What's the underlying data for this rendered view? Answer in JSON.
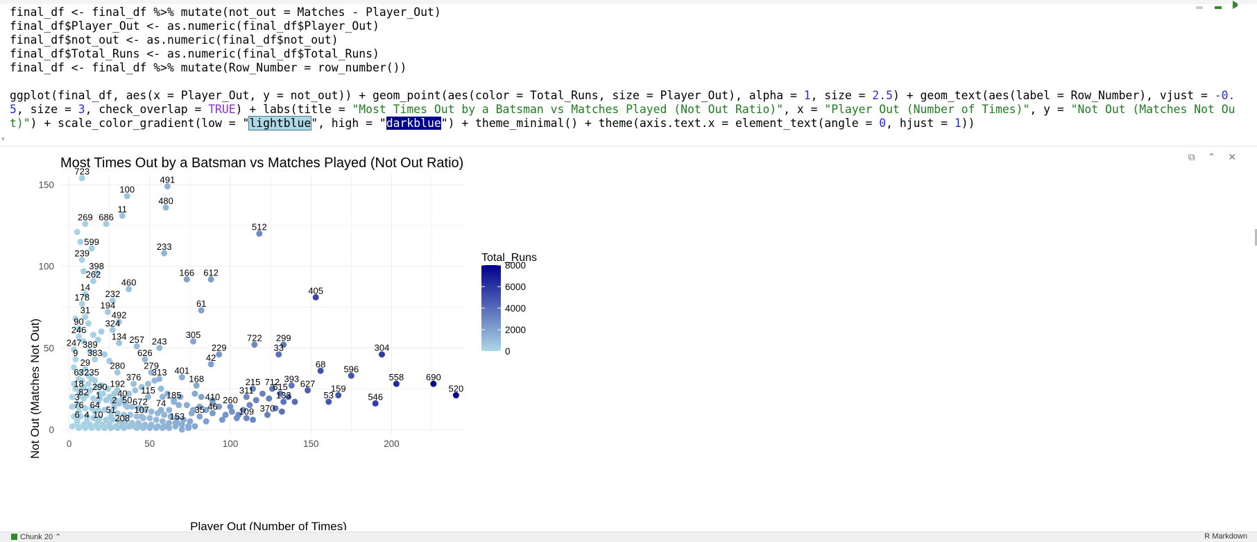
{
  "editor": {
    "code_lines": [
      "final_df <- final_df %>% mutate(not_out = Matches - Player_Out)",
      "final_df$Player_Out <- as.numeric(final_df$Player_Out)",
      "final_df$not_out <- as.numeric(final_df$not_out)",
      "final_df$Total_Runs <- as.numeric(final_df$Total_Runs)",
      "final_df <- final_df %>% mutate(Row_Number = row_number())"
    ],
    "ggplot_parts": {
      "p1": "ggplot(final_df, aes(x = Player_Out, y = not_out)) + geom_point(aes(color = Total_Runs, size = Player_Out), alpha = ",
      "alpha": "1",
      "p2": ", size = ",
      "size1": "2.5",
      "p3": ") + geom_text(aes(label = Row_Number), vjust = ",
      "vjust": "-0.5",
      "p4": ", size = ",
      "size2": "3",
      "p5": ", check_overlap = ",
      "overlap": "TRUE",
      "p6": ") + labs(title = ",
      "title_str": "\"Most Times Out by a Batsman vs Matches Played (Not Out Ratio)\"",
      "p7": ", x = ",
      "x_str": "\"Player Out (Number of Times)\"",
      "p8": ", y = ",
      "y_str": "\"Not Out (Matches Not Out)\"",
      "p9": ") + scale_color_gradient(low = \"",
      "low": "lightblue",
      "p10": "\", high = \"",
      "high": "darkblue",
      "p11": "\") + theme_minimal() + theme(axis.text.x = element_text(angle = ",
      "angle": "0",
      "p12": ", hjust = ",
      "hjust": "1",
      "p13": "))"
    }
  },
  "status": {
    "chunk": "Chunk 20",
    "doc_type": "R Markdown"
  },
  "colors": {
    "low": "#add8e6",
    "high": "#00008b",
    "grid": "#ebebeb"
  },
  "chart_data": {
    "type": "scatter",
    "title": "Most Times Out by a Batsman vs Matches Played (Not Out Ratio)",
    "xlabel": "Player Out (Number of Times)",
    "ylabel": "Not Out (Matches Not Out)",
    "xlim": [
      -5,
      245
    ],
    "ylim": [
      -3,
      156
    ],
    "xticks": [
      0,
      50,
      100,
      150,
      200
    ],
    "yticks": [
      0,
      50,
      100,
      150
    ],
    "legend": {
      "title": "Total_Runs",
      "ticks": [
        0,
        2000,
        4000,
        6000,
        8000
      ],
      "placement": "right"
    },
    "labeled_points": [
      {
        "label": "723",
        "x": 8,
        "y": 154,
        "runs": 300
      },
      {
        "label": "491",
        "x": 61,
        "y": 149,
        "runs": 1400
      },
      {
        "label": "100",
        "x": 36,
        "y": 143,
        "runs": 700
      },
      {
        "label": "480",
        "x": 60,
        "y": 136,
        "runs": 1200
      },
      {
        "label": "11",
        "x": 33,
        "y": 131,
        "runs": 800
      },
      {
        "label": "269",
        "x": 10,
        "y": 126,
        "runs": 300
      },
      {
        "label": "686",
        "x": 23,
        "y": 126,
        "runs": 500
      },
      {
        "label": "512",
        "x": 118,
        "y": 120,
        "runs": 2900
      },
      {
        "label": "599",
        "x": 14,
        "y": 111,
        "runs": 400
      },
      {
        "label": "233",
        "x": 59,
        "y": 108,
        "runs": 1300
      },
      {
        "label": "239",
        "x": 8,
        "y": 104,
        "runs": 300
      },
      {
        "label": "398",
        "x": 17,
        "y": 96,
        "runs": 400
      },
      {
        "label": "166",
        "x": 73,
        "y": 92,
        "runs": 2000
      },
      {
        "label": "612",
        "x": 88,
        "y": 92,
        "runs": 2200
      },
      {
        "label": "262",
        "x": 15,
        "y": 91,
        "runs": 350
      },
      {
        "label": "460",
        "x": 37,
        "y": 86,
        "runs": 800
      },
      {
        "label": "405",
        "x": 153,
        "y": 81,
        "runs": 5400
      },
      {
        "label": "14",
        "x": 10,
        "y": 83,
        "runs": 250
      },
      {
        "label": "232",
        "x": 27,
        "y": 79,
        "runs": 450
      },
      {
        "label": "178",
        "x": 8,
        "y": 77,
        "runs": 200
      },
      {
        "label": "194",
        "x": 24,
        "y": 72,
        "runs": 450
      },
      {
        "label": "61",
        "x": 82,
        "y": 73,
        "runs": 2000
      },
      {
        "label": "31",
        "x": 10,
        "y": 69,
        "runs": 200
      },
      {
        "label": "492",
        "x": 31,
        "y": 66,
        "runs": 600
      },
      {
        "label": "90",
        "x": 6,
        "y": 62,
        "runs": 150
      },
      {
        "label": "324",
        "x": 27,
        "y": 61,
        "runs": 500
      },
      {
        "label": "246",
        "x": 6,
        "y": 57,
        "runs": 150
      },
      {
        "label": "134",
        "x": 31,
        "y": 53,
        "runs": 700
      },
      {
        "label": "305",
        "x": 77,
        "y": 54,
        "runs": 1900
      },
      {
        "label": "722",
        "x": 115,
        "y": 52,
        "runs": 3000
      },
      {
        "label": "299",
        "x": 133,
        "y": 52,
        "runs": 3500
      },
      {
        "label": "257",
        "x": 42,
        "y": 51,
        "runs": 1000
      },
      {
        "label": "243",
        "x": 56,
        "y": 50,
        "runs": 1200
      },
      {
        "label": "247",
        "x": 3,
        "y": 49,
        "runs": 100
      },
      {
        "label": "389",
        "x": 13,
        "y": 48,
        "runs": 300
      },
      {
        "label": "33",
        "x": 130,
        "y": 46,
        "runs": 3800
      },
      {
        "label": "229",
        "x": 93,
        "y": 46,
        "runs": 2400
      },
      {
        "label": "304",
        "x": 194,
        "y": 46,
        "runs": 5800
      },
      {
        "label": "626",
        "x": 47,
        "y": 43,
        "runs": 1100
      },
      {
        "label": "9",
        "x": 4,
        "y": 43,
        "runs": 100
      },
      {
        "label": "383",
        "x": 16,
        "y": 43,
        "runs": 300
      },
      {
        "label": "42",
        "x": 88,
        "y": 40,
        "runs": 2100
      },
      {
        "label": "29",
        "x": 10,
        "y": 37,
        "runs": 200
      },
      {
        "label": "68",
        "x": 156,
        "y": 36,
        "runs": 5000
      },
      {
        "label": "280",
        "x": 30,
        "y": 35,
        "runs": 600
      },
      {
        "label": "279",
        "x": 51,
        "y": 35,
        "runs": 1200
      },
      {
        "label": "596",
        "x": 175,
        "y": 33,
        "runs": 4900
      },
      {
        "label": "63",
        "x": 6,
        "y": 31,
        "runs": 100
      },
      {
        "label": "235",
        "x": 14,
        "y": 31,
        "runs": 300
      },
      {
        "label": "313",
        "x": 56,
        "y": 31,
        "runs": 1300
      },
      {
        "label": "401",
        "x": 70,
        "y": 32,
        "runs": 1600
      },
      {
        "label": "558",
        "x": 203,
        "y": 28,
        "runs": 6500
      },
      {
        "label": "690",
        "x": 226,
        "y": 28,
        "runs": 7800
      },
      {
        "label": "376",
        "x": 40,
        "y": 28,
        "runs": 900
      },
      {
        "label": "168",
        "x": 79,
        "y": 27,
        "runs": 1800
      },
      {
        "label": "393",
        "x": 138,
        "y": 27,
        "runs": 3700
      },
      {
        "label": "215",
        "x": 114,
        "y": 25,
        "runs": 3100
      },
      {
        "label": "712",
        "x": 126,
        "y": 25,
        "runs": 3400
      },
      {
        "label": "627",
        "x": 148,
        "y": 24,
        "runs": 4400
      },
      {
        "label": "18",
        "x": 6,
        "y": 24,
        "runs": 100
      },
      {
        "label": "192",
        "x": 30,
        "y": 24,
        "runs": 600
      },
      {
        "label": "290",
        "x": 19,
        "y": 22,
        "runs": 300
      },
      {
        "label": "615",
        "x": 131,
        "y": 22,
        "runs": 3700
      },
      {
        "label": "520",
        "x": 240,
        "y": 21,
        "runs": 8000
      },
      {
        "label": "311",
        "x": 110,
        "y": 20,
        "runs": 3000
      },
      {
        "label": "159",
        "x": 167,
        "y": 21,
        "runs": 4900
      },
      {
        "label": "115",
        "x": 49,
        "y": 20,
        "runs": 1100
      },
      {
        "label": "82",
        "x": 9,
        "y": 19,
        "runs": 150
      },
      {
        "label": "40",
        "x": 33,
        "y": 18,
        "runs": 700
      },
      {
        "label": "1",
        "x": 18,
        "y": 17,
        "runs": 300
      },
      {
        "label": "185",
        "x": 65,
        "y": 17,
        "runs": 1500
      },
      {
        "label": "53",
        "x": 161,
        "y": 17,
        "runs": 4800
      },
      {
        "label": "133",
        "x": 133,
        "y": 17,
        "runs": 3700
      },
      {
        "label": "410",
        "x": 89,
        "y": 16,
        "runs": 2200
      },
      {
        "label": "546",
        "x": 190,
        "y": 16,
        "runs": 5700
      },
      {
        "label": "3",
        "x": 5,
        "y": 16,
        "runs": 100
      },
      {
        "label": "50",
        "x": 36,
        "y": 14,
        "runs": 800
      },
      {
        "label": "2",
        "x": 28,
        "y": 14,
        "runs": 600
      },
      {
        "label": "672",
        "x": 44,
        "y": 13,
        "runs": 1000
      },
      {
        "label": "260",
        "x": 100,
        "y": 14,
        "runs": 2700
      },
      {
        "label": "74",
        "x": 57,
        "y": 12,
        "runs": 1400
      },
      {
        "label": "76",
        "x": 6,
        "y": 11,
        "runs": 100
      },
      {
        "label": "64",
        "x": 16,
        "y": 11,
        "runs": 300
      },
      {
        "label": "46",
        "x": 89,
        "y": 10,
        "runs": 2300
      },
      {
        "label": "370",
        "x": 123,
        "y": 9,
        "runs": 3300
      },
      {
        "label": "51",
        "x": 26,
        "y": 8,
        "runs": 500
      },
      {
        "label": "107",
        "x": 45,
        "y": 8,
        "runs": 1000
      },
      {
        "label": "35",
        "x": 81,
        "y": 8,
        "runs": 2000
      },
      {
        "label": "109",
        "x": 110,
        "y": 7,
        "runs": 3000
      },
      {
        "label": "6",
        "x": 5,
        "y": 5,
        "runs": 100
      },
      {
        "label": "4",
        "x": 11,
        "y": 5,
        "runs": 200
      },
      {
        "label": "10",
        "x": 18,
        "y": 5,
        "runs": 300
      },
      {
        "label": "153",
        "x": 67,
        "y": 4,
        "runs": 1600
      },
      {
        "label": "208",
        "x": 33,
        "y": 3,
        "runs": 700
      }
    ],
    "unlabeled_points": [
      [
        5,
        121,
        200
      ],
      [
        7,
        115,
        250
      ],
      [
        9,
        97,
        300
      ],
      [
        4,
        68,
        150
      ],
      [
        12,
        65,
        250
      ],
      [
        15,
        58,
        300
      ],
      [
        18,
        55,
        350
      ],
      [
        20,
        60,
        400
      ],
      [
        9,
        54,
        200
      ],
      [
        22,
        46,
        450
      ],
      [
        25,
        42,
        500
      ],
      [
        3,
        38,
        100
      ],
      [
        7,
        35,
        150
      ],
      [
        12,
        33,
        250
      ],
      [
        16,
        30,
        300
      ],
      [
        20,
        27,
        400
      ],
      [
        24,
        25,
        450
      ],
      [
        28,
        22,
        550
      ],
      [
        3,
        28,
        100
      ],
      [
        9,
        26,
        200
      ],
      [
        13,
        24,
        250
      ],
      [
        2,
        20,
        100
      ],
      [
        7,
        21,
        150
      ],
      [
        11,
        21,
        200
      ],
      [
        15,
        19,
        300
      ],
      [
        19,
        19,
        350
      ],
      [
        23,
        18,
        450
      ],
      [
        27,
        17,
        550
      ],
      [
        31,
        16,
        650
      ],
      [
        35,
        15,
        750
      ],
      [
        39,
        14,
        850
      ],
      [
        43,
        13,
        950
      ],
      [
        47,
        12,
        1050
      ],
      [
        51,
        11,
        1150
      ],
      [
        55,
        10,
        1250
      ],
      [
        59,
        9,
        1350
      ],
      [
        63,
        8,
        1450
      ],
      [
        67,
        7,
        1550
      ],
      [
        71,
        6,
        1650
      ],
      [
        75,
        5,
        1750
      ],
      [
        2,
        14,
        100
      ],
      [
        6,
        14,
        150
      ],
      [
        10,
        13,
        200
      ],
      [
        14,
        13,
        250
      ],
      [
        18,
        12,
        300
      ],
      [
        22,
        12,
        400
      ],
      [
        26,
        11,
        500
      ],
      [
        30,
        10,
        600
      ],
      [
        34,
        9,
        700
      ],
      [
        38,
        9,
        800
      ],
      [
        42,
        8,
        900
      ],
      [
        46,
        7,
        1000
      ],
      [
        50,
        7,
        1100
      ],
      [
        54,
        6,
        1200
      ],
      [
        58,
        5,
        1300
      ],
      [
        62,
        4,
        1400
      ],
      [
        66,
        4,
        1500
      ],
      [
        70,
        3,
        1600
      ],
      [
        74,
        2,
        1700
      ],
      [
        78,
        2,
        1800
      ],
      [
        3,
        8,
        100
      ],
      [
        7,
        8,
        150
      ],
      [
        11,
        8,
        200
      ],
      [
        15,
        7,
        250
      ],
      [
        19,
        7,
        300
      ],
      [
        23,
        6,
        400
      ],
      [
        27,
        6,
        500
      ],
      [
        31,
        5,
        600
      ],
      [
        35,
        5,
        700
      ],
      [
        39,
        4,
        800
      ],
      [
        43,
        4,
        900
      ],
      [
        47,
        3,
        1000
      ],
      [
        51,
        3,
        1100
      ],
      [
        55,
        2,
        1200
      ],
      [
        59,
        2,
        1300
      ],
      [
        2,
        2,
        100
      ],
      [
        6,
        1,
        150
      ],
      [
        10,
        1,
        200
      ],
      [
        14,
        1,
        250
      ],
      [
        18,
        1,
        300
      ],
      [
        22,
        1,
        400
      ],
      [
        26,
        1,
        500
      ],
      [
        30,
        1,
        600
      ],
      [
        34,
        1,
        700
      ],
      [
        38,
        2,
        800
      ],
      [
        42,
        1,
        900
      ],
      [
        46,
        1,
        1000
      ],
      [
        50,
        1,
        1100
      ],
      [
        54,
        1,
        1200
      ],
      [
        58,
        1,
        1300
      ],
      [
        62,
        1,
        1400
      ],
      [
        66,
        2,
        1500
      ],
      [
        70,
        0,
        1600
      ],
      [
        74,
        1,
        1700
      ],
      [
        5,
        3,
        100
      ],
      [
        9,
        3,
        150
      ],
      [
        13,
        3,
        200
      ],
      [
        17,
        3,
        250
      ],
      [
        21,
        3,
        300
      ],
      [
        25,
        3,
        400
      ],
      [
        29,
        2,
        500
      ],
      [
        33,
        2,
        600
      ],
      [
        37,
        2,
        700
      ],
      [
        41,
        2,
        800
      ],
      [
        45,
        2,
        900
      ],
      [
        4,
        25,
        100
      ],
      [
        8,
        30,
        150
      ],
      [
        12,
        28,
        200
      ],
      [
        17,
        26,
        300
      ],
      [
        21,
        22,
        350
      ],
      [
        25,
        20,
        450
      ],
      [
        29,
        18,
        500
      ],
      [
        33,
        19,
        600
      ],
      [
        37,
        22,
        700
      ],
      [
        41,
        24,
        800
      ],
      [
        45,
        26,
        900
      ],
      [
        49,
        28,
        1000
      ],
      [
        53,
        30,
        1100
      ],
      [
        57,
        25,
        1200
      ],
      [
        61,
        22,
        1300
      ],
      [
        65,
        18,
        1400
      ],
      [
        69,
        20,
        1500
      ],
      [
        73,
        15,
        1600
      ],
      [
        77,
        12,
        1700
      ],
      [
        81,
        14,
        1800
      ],
      [
        85,
        12,
        1900
      ],
      [
        89,
        18,
        2100
      ],
      [
        93,
        14,
        2300
      ],
      [
        97,
        9,
        2500
      ],
      [
        101,
        11,
        2600
      ],
      [
        105,
        9,
        2800
      ],
      [
        95,
        6,
        2400
      ],
      [
        85,
        5,
        2100
      ],
      [
        82,
        20,
        2000
      ],
      [
        78,
        22,
        1800
      ],
      [
        108,
        12,
        2900
      ],
      [
        112,
        15,
        3000
      ],
      [
        116,
        18,
        3100
      ],
      [
        120,
        22,
        3200
      ],
      [
        124,
        19,
        3300
      ],
      [
        128,
        13,
        3500
      ],
      [
        132,
        11,
        3700
      ],
      [
        136,
        20,
        3800
      ],
      [
        140,
        17,
        4000
      ],
      [
        104,
        7,
        2700
      ],
      [
        114,
        6,
        3000
      ],
      [
        76,
        10,
        1700
      ],
      [
        68,
        15,
        1500
      ],
      [
        62,
        12,
        1400
      ],
      [
        58,
        20,
        1300
      ]
    ]
  }
}
